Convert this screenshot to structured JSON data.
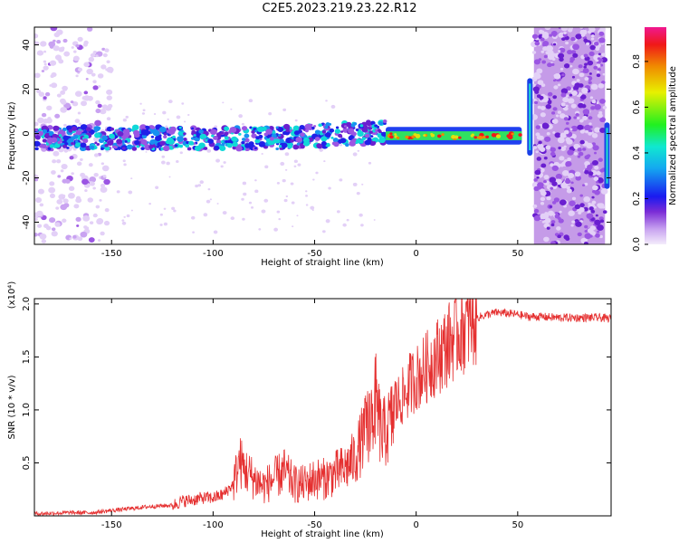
{
  "title": "C2E5.2023.219.23.22.R12",
  "chart_data": [
    {
      "type": "heatmap",
      "xlabel": "Height of straight line (km)",
      "ylabel": "Frequency (Hz)",
      "xlim": [
        -188,
        96
      ],
      "ylim": [
        -50,
        48
      ],
      "xticks": [
        -150,
        -100,
        -50,
        0,
        50
      ],
      "yticks": [
        -40,
        -20,
        0,
        20,
        40
      ],
      "colorbar": {
        "label": "Normalized spectral amplitude",
        "range": [
          0.0,
          0.95
        ],
        "ticks": [
          "0.0",
          "0.2",
          "0.4",
          "0.6",
          "0.8"
        ],
        "tick_values": [
          0.0,
          0.2,
          0.4,
          0.6,
          0.8
        ]
      },
      "features": [
        {
          "name": "main-band",
          "x_range": [
            -188,
            52
          ],
          "freq_center": -2,
          "freq_width": 10
        },
        {
          "name": "narrow-band",
          "x_range": [
            -15,
            52
          ],
          "freq_center": -1,
          "freq_width": 4
        },
        {
          "name": "noise-block-left",
          "x_range": [
            -188,
            -150
          ],
          "freq_range": [
            -50,
            48
          ]
        },
        {
          "name": "noise-block-right",
          "x_range": [
            58,
            93
          ],
          "freq_range": [
            -50,
            48
          ]
        },
        {
          "name": "spike",
          "x": 56,
          "freq_range": [
            -10,
            25
          ]
        },
        {
          "name": "spike",
          "x": 94,
          "freq_range": [
            -25,
            5
          ]
        }
      ]
    },
    {
      "type": "line",
      "xlabel": "Height of straight line (km)",
      "ylabel": "SNR (10 * v/v)",
      "y_multiplier": "(x10⁴)",
      "xlim": [
        -188,
        96
      ],
      "ylim": [
        0,
        2.05
      ],
      "xticks": [
        -150,
        -100,
        -50,
        0,
        50
      ],
      "yticks": [
        0.5,
        1.0,
        1.5,
        2.0
      ],
      "ytick_labels": [
        "0.5",
        "1.0",
        "1.5",
        "2.0"
      ],
      "color": "#e53030",
      "series": [
        {
          "x": [
            -188,
            -170,
            -160,
            -150,
            -140,
            -130,
            -120,
            -115,
            -110,
            -105,
            -100,
            -95,
            -90,
            -87,
            -85,
            -80,
            -75,
            -70,
            -65,
            -60,
            -55,
            -50,
            -45,
            -40,
            -35,
            -30,
            -25,
            -22,
            -20,
            -17,
            -15,
            -12,
            -10,
            -8,
            -5,
            -3,
            0,
            3,
            5,
            10,
            15,
            20,
            25,
            30,
            35,
            40,
            45,
            50,
            55,
            60,
            70,
            80,
            90,
            96
          ],
          "values": [
            0.02,
            0.03,
            0.03,
            0.05,
            0.07,
            0.09,
            0.1,
            0.14,
            0.15,
            0.17,
            0.17,
            0.2,
            0.3,
            0.52,
            0.45,
            0.35,
            0.28,
            0.35,
            0.42,
            0.3,
            0.3,
            0.35,
            0.35,
            0.4,
            0.45,
            0.55,
            0.8,
            0.95,
            1.1,
            0.75,
            0.8,
            0.9,
            1.05,
            1.1,
            1.15,
            1.25,
            1.3,
            1.35,
            1.4,
            1.5,
            1.6,
            1.72,
            1.8,
            1.87,
            1.9,
            1.92,
            1.91,
            1.9,
            1.88,
            1.88,
            1.87,
            1.87,
            1.87,
            1.86
          ]
        }
      ]
    }
  ]
}
